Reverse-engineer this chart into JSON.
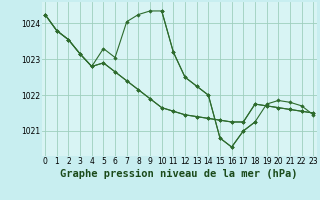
{
  "background_color": "#c8eef0",
  "plot_bg_color": "#d8f4f4",
  "grid_color": "#9ecfbe",
  "line_color": "#2d6b2d",
  "marker_color": "#2d6b2d",
  "xlabel": "Graphe pression niveau de la mer (hPa)",
  "xlabel_fontsize": 7.5,
  "yticks": [
    1021,
    1022,
    1023,
    1024
  ],
  "xticks": [
    0,
    1,
    2,
    3,
    4,
    5,
    6,
    7,
    8,
    9,
    10,
    11,
    12,
    13,
    14,
    15,
    16,
    17,
    18,
    19,
    20,
    21,
    22,
    23
  ],
  "ylim": [
    1020.3,
    1024.6
  ],
  "xlim": [
    -0.3,
    23.3
  ],
  "series": [
    {
      "x": [
        0,
        1,
        2,
        3,
        4,
        5,
        6,
        7,
        8,
        9,
        10,
        11,
        12,
        13,
        14,
        15,
        16,
        17,
        18,
        19,
        20,
        21,
        22,
        23
      ],
      "y": [
        1024.25,
        1023.8,
        1023.55,
        1023.15,
        1022.8,
        1022.9,
        1022.65,
        1022.4,
        1022.15,
        1021.9,
        1021.65,
        1021.55,
        1021.45,
        1021.4,
        1021.35,
        1021.3,
        1021.25,
        1021.25,
        1021.75,
        1021.7,
        1021.65,
        1021.6,
        1021.55,
        1021.5
      ]
    },
    {
      "x": [
        0,
        1,
        2,
        3,
        4,
        5,
        6,
        7,
        8,
        9,
        10,
        11,
        12,
        13,
        14,
        15,
        16,
        17,
        18
      ],
      "y": [
        1024.25,
        1023.8,
        1023.55,
        1023.15,
        1022.8,
        1023.3,
        1023.05,
        1024.05,
        1024.25,
        1024.35,
        1024.35,
        1023.2,
        1022.5,
        1022.25,
        1022.0,
        1020.8,
        1020.55,
        1021.0,
        1021.25
      ]
    },
    {
      "x": [
        10,
        11,
        12,
        13,
        14,
        15,
        16,
        17,
        18,
        19,
        20,
        21,
        22,
        23
      ],
      "y": [
        1024.35,
        1023.2,
        1022.5,
        1022.25,
        1022.0,
        1020.8,
        1020.55,
        1021.0,
        1021.25,
        1021.75,
        1021.85,
        1021.8,
        1021.7,
        1021.45
      ]
    },
    {
      "x": [
        0,
        1,
        2,
        3,
        4,
        5,
        6,
        7,
        8,
        9,
        10,
        11,
        12,
        13,
        14,
        15,
        16,
        17,
        18,
        19,
        20,
        21,
        22,
        23
      ],
      "y": [
        1024.25,
        1023.8,
        1023.55,
        1023.15,
        1022.8,
        1022.9,
        1022.65,
        1022.4,
        1022.15,
        1021.9,
        1021.65,
        1021.55,
        1021.45,
        1021.4,
        1021.35,
        1021.3,
        1021.25,
        1021.25,
        1021.75,
        1021.7,
        1021.65,
        1021.6,
        1021.55,
        1021.5
      ]
    }
  ]
}
